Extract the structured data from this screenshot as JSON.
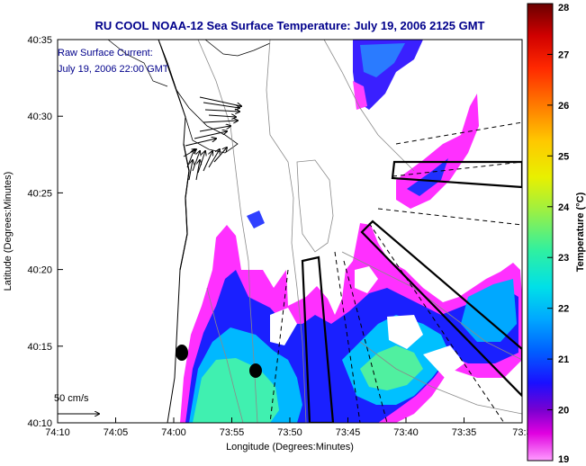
{
  "title": "RU COOL  NOAA-12  Sea Surface Temperature:  July 19, 2006 2125 GMT",
  "inset": {
    "line1": "Raw Surface Current:",
    "line2": "July 19, 2006 22:00 GMT"
  },
  "scale_label": "50 cm/s",
  "x_axis": {
    "label": "Longitude (Degrees:Minutes)",
    "ticks": [
      "74:10",
      "74:05",
      "74:00",
      "73:55",
      "73:50",
      "73:45",
      "73:40",
      "73:35",
      "73:3"
    ]
  },
  "y_axis": {
    "label": "Latitude (Degrees:Minutes)",
    "ticks": [
      "40:35",
      "40:30",
      "40:25",
      "40:20",
      "40:15",
      "40:10"
    ]
  },
  "colorbar": {
    "label": "Temperature (°C)",
    "ticks": [
      "28",
      "27",
      "26",
      "25",
      "24",
      "23",
      "22",
      "21",
      "20",
      "19"
    ],
    "colors": [
      "#7a0000",
      "#c40000",
      "#ff2000",
      "#ff7a00",
      "#ffc800",
      "#e8f000",
      "#a8f020",
      "#40f080",
      "#00e8d8",
      "#00b8ff",
      "#0070ff",
      "#1020ff",
      "#2000d0",
      "#6000d0",
      "#b000e0",
      "#ff40ff",
      "#ff90ff"
    ]
  },
  "colors": {
    "title": "#00008b",
    "land": "#ffffff",
    "coast": "#000000",
    "bathymetry": "#8a8a8a"
  }
}
